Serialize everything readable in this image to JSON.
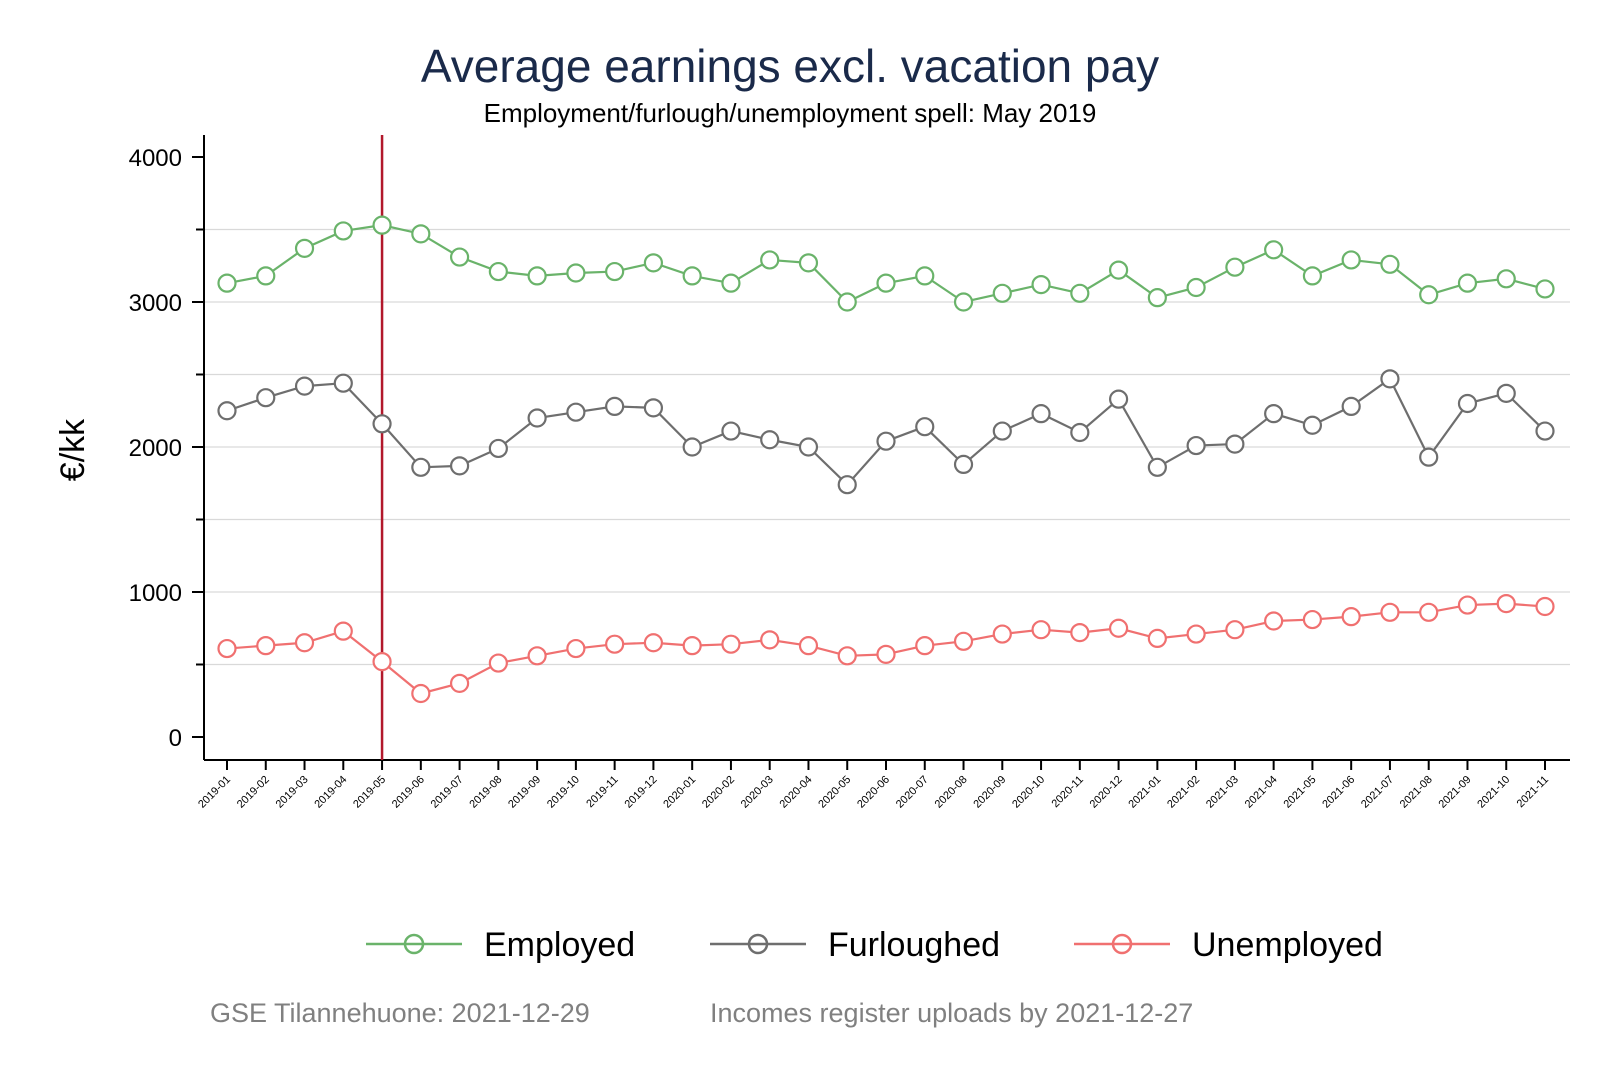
{
  "chart_data": {
    "type": "line",
    "title": "Average earnings excl. vacation pay",
    "subtitle": "Employment/furlough/unemployment spell: May 2019",
    "ylabel": "€/kk",
    "xlabel": "",
    "ylim": [
      0,
      4000
    ],
    "yticks": [
      0,
      1000,
      2000,
      3000,
      4000
    ],
    "grid": true,
    "legend_position": "bottom",
    "reference_line": {
      "x": "2019-05",
      "color": "#b2182b"
    },
    "categories": [
      "2019-01",
      "2019-02",
      "2019-03",
      "2019-04",
      "2019-05",
      "2019-06",
      "2019-07",
      "2019-08",
      "2019-09",
      "2019-10",
      "2019-11",
      "2019-12",
      "2020-01",
      "2020-02",
      "2020-03",
      "2020-04",
      "2020-05",
      "2020-06",
      "2020-07",
      "2020-08",
      "2020-09",
      "2020-10",
      "2020-11",
      "2020-12",
      "2021-01",
      "2021-02",
      "2021-03",
      "2021-04",
      "2021-05",
      "2021-06",
      "2021-07",
      "2021-08",
      "2021-09",
      "2021-10",
      "2021-11"
    ],
    "series": [
      {
        "name": "Employed",
        "color": "#6ab36a",
        "values": [
          3130,
          3180,
          3370,
          3490,
          3530,
          3470,
          3310,
          3210,
          3180,
          3200,
          3210,
          3270,
          3180,
          3130,
          3290,
          3270,
          3000,
          3130,
          3180,
          3000,
          3060,
          3120,
          3060,
          3220,
          3030,
          3100,
          3240,
          3360,
          3180,
          3290,
          3260,
          3050,
          3130,
          3160,
          3090
        ]
      },
      {
        "name": "Furloughed",
        "color": "#6e6e6e",
        "values": [
          2250,
          2340,
          2420,
          2440,
          2160,
          1860,
          1870,
          1990,
          2200,
          2240,
          2280,
          2270,
          2000,
          2110,
          2050,
          2000,
          1740,
          2040,
          2140,
          1880,
          2110,
          2230,
          2100,
          2330,
          1860,
          2010,
          2020,
          2230,
          2150,
          2280,
          2470,
          1930,
          2300,
          2370,
          2110
        ]
      },
      {
        "name": "Unemployed",
        "color": "#f07070",
        "values": [
          610,
          630,
          650,
          730,
          520,
          300,
          370,
          510,
          560,
          610,
          640,
          650,
          630,
          640,
          670,
          630,
          560,
          570,
          630,
          660,
          710,
          740,
          720,
          750,
          680,
          710,
          740,
          800,
          810,
          830,
          860,
          860,
          910,
          920,
          900
        ]
      }
    ]
  },
  "footer": {
    "left": "GSE Tilannehuone: 2021-12-29",
    "right": "Incomes register uploads by 2021-12-27"
  }
}
